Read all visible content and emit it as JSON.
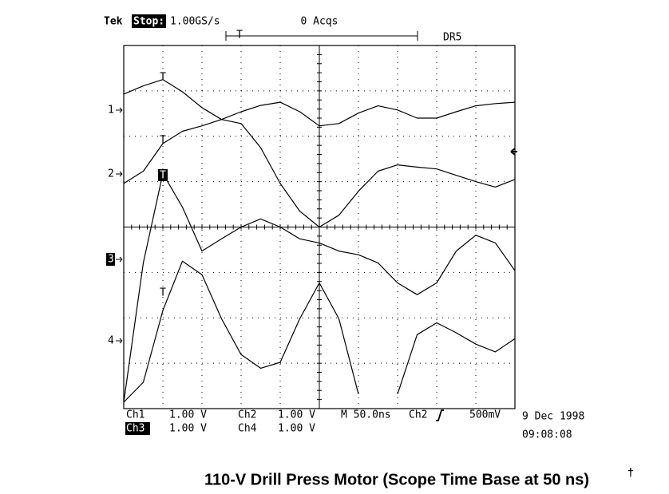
{
  "chart_data": {
    "type": "line",
    "title": "110-V Drill Press Motor (Scope Time Base at 50 ns)",
    "title_mark": "†",
    "header": {
      "brand": "Tek",
      "state": "Stop:",
      "rate": "1.00GS/s",
      "acquisitions": "0 Acqs",
      "record": "DR5"
    },
    "trigger_label": "T",
    "readout": {
      "row1": [
        "Ch1",
        "1.00 V",
        "Ch2",
        "1.00 V",
        "M 50.0ns",
        "Ch2",
        "500mV"
      ],
      "row2": [
        "Ch3",
        "1.00 V",
        "Ch4",
        "1.00 V"
      ],
      "date": "9 Dec 1998",
      "time": "09:08:08"
    },
    "x": [
      0,
      0.5,
      1,
      1.5,
      2,
      2.5,
      3,
      3.5,
      4,
      4.5,
      5,
      5.5,
      6,
      6.5,
      7,
      7.5,
      8,
      8.5,
      9,
      9.5,
      10
    ],
    "xlim": [
      0,
      10
    ],
    "ylim": [
      -4,
      4
    ],
    "grid": true,
    "series": [
      {
        "name": "1",
        "color": "#000000",
        "values": [
          2.93,
          3.11,
          3.25,
          2.98,
          2.63,
          2.37,
          2.54,
          2.68,
          2.75,
          2.54,
          2.23,
          2.28,
          2.51,
          2.67,
          2.58,
          2.4,
          2.4,
          2.54,
          2.67,
          2.72,
          2.75
        ]
      },
      {
        "name": "2",
        "color": "#000000",
        "values": [
          0.96,
          1.23,
          1.84,
          2.11,
          2.23,
          2.37,
          2.28,
          1.75,
          0.96,
          0.35,
          0,
          0.26,
          0.79,
          1.23,
          1.37,
          1.32,
          1.28,
          1.14,
          1.0,
          0.88,
          1.05
        ]
      },
      {
        "name": "3",
        "color": "#000000",
        "values": [
          -3.86,
          -0.79,
          1.18,
          0.44,
          -0.53,
          -0.26,
          0,
          0.18,
          0,
          -0.26,
          -0.35,
          -0.53,
          -0.61,
          -0.79,
          -1.23,
          -1.49,
          -1.23,
          -0.53,
          -0.18,
          -0.35,
          -0.96
        ]
      },
      {
        "name": "4",
        "color": "#000000",
        "values": [
          -3.86,
          -3.42,
          -1.84,
          -0.75,
          -1.05,
          -2.02,
          -2.81,
          -3.11,
          -2.98,
          -2.02,
          -1.23,
          -2.02,
          -3.68,
          null,
          -3.68,
          -2.37,
          -2.11,
          -2.33,
          -2.58,
          -2.75,
          -2.46
        ]
      }
    ]
  }
}
